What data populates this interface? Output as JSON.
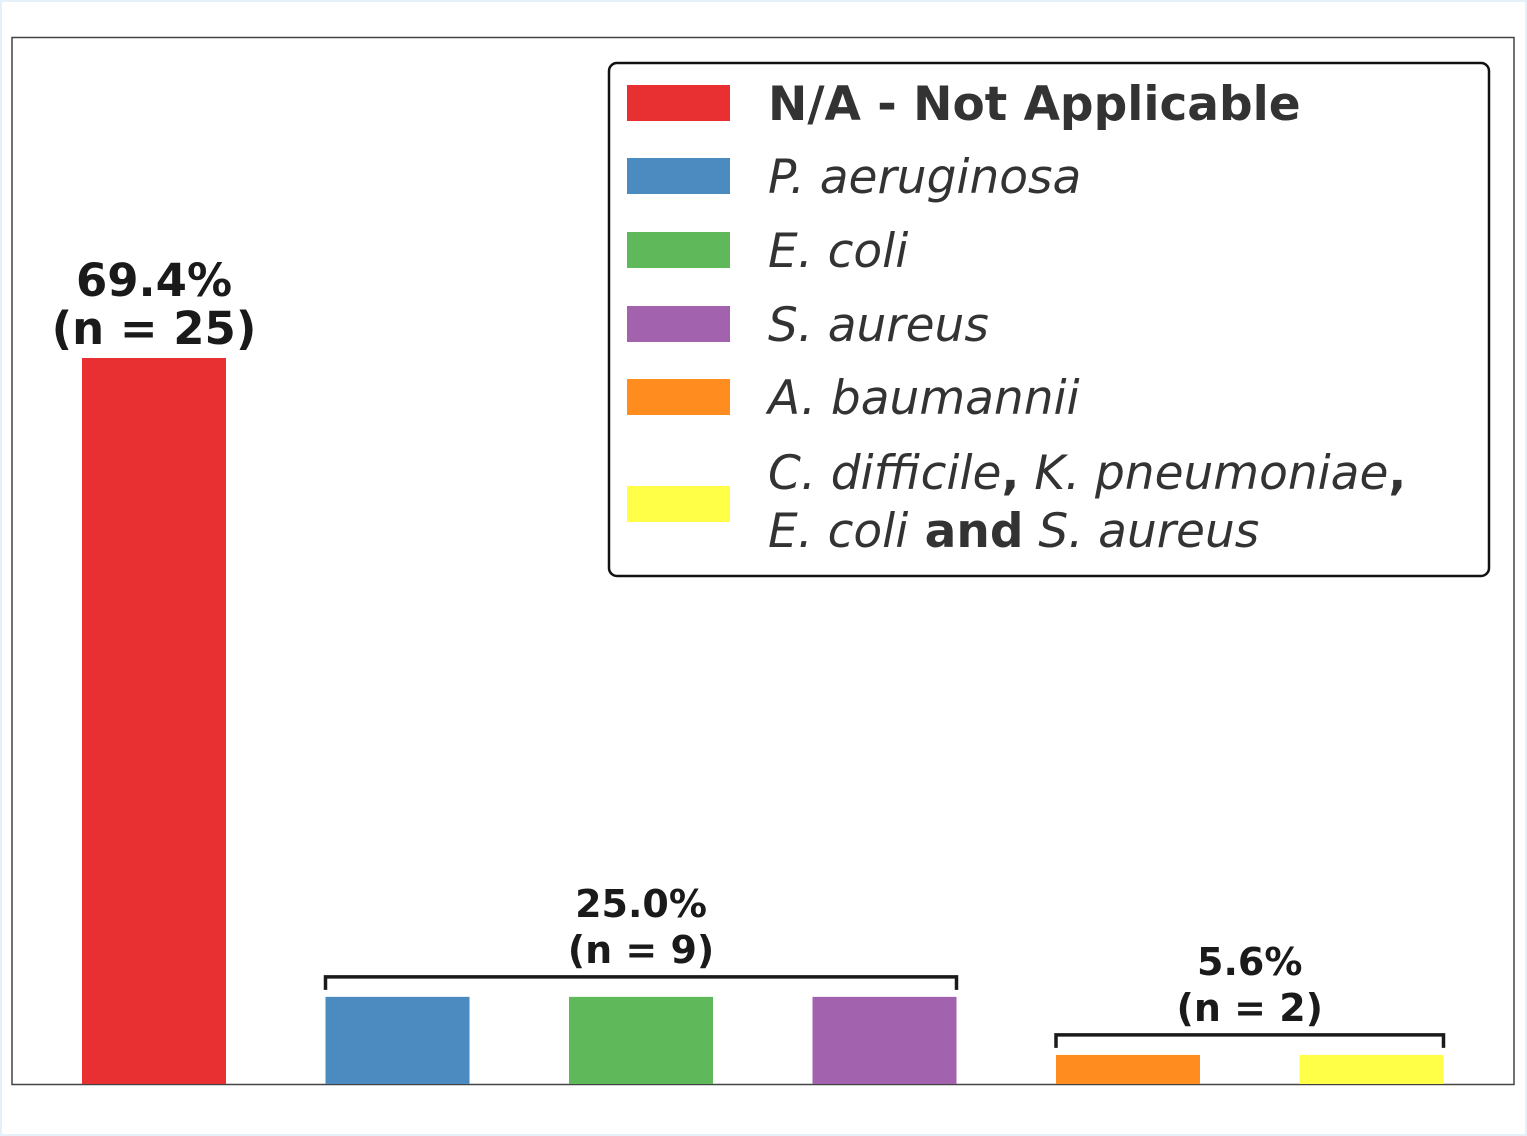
{
  "chart_data": {
    "type": "bar",
    "title": "",
    "xlabel": "",
    "ylabel": "",
    "ylim": [
      0,
      100
    ],
    "grid": false,
    "legend_placement": "top-right",
    "categories": [
      "N/A - Not Applicable",
      "P. aeruginosa",
      "E. coli",
      "S. aureus",
      "A. baumannii",
      "C. difficile, K. pneumoniae, E. coli and S. aureus"
    ],
    "values": [
      69.4,
      8.33,
      8.33,
      8.33,
      2.78,
      2.78
    ],
    "colors": [
      "#e83033",
      "#4b8bbf",
      "#5fb95b",
      "#a262ad",
      "#ff8c1f",
      "#ffff47"
    ],
    "legend": [
      {
        "parts": [
          {
            "text": "N/A - Not Applicable",
            "style": "bold"
          }
        ]
      },
      {
        "parts": [
          {
            "text": "P.",
            "style": "italic"
          },
          {
            "text": "aeruginosa",
            "style": "italic"
          }
        ]
      },
      {
        "parts": [
          {
            "text": "E.",
            "style": "italic"
          },
          {
            "text": "coli",
            "style": "italic"
          }
        ]
      },
      {
        "parts": [
          {
            "text": "S.",
            "style": "italic"
          },
          {
            "text": "aureus",
            "style": "italic"
          }
        ]
      },
      {
        "parts": [
          {
            "text": "A.",
            "style": "italic"
          },
          {
            "text": "baumannii",
            "style": "italic"
          }
        ]
      },
      {
        "parts": [
          {
            "text": "C.",
            "style": "italic"
          },
          {
            "text": "difficile",
            "style": "italic"
          },
          {
            "text": ",",
            "style": "bold"
          },
          {
            "text": "K.",
            "style": "italic"
          },
          {
            "text": "pneumoniae",
            "style": "italic"
          },
          {
            "text": ",",
            "style": "bold"
          }
        ],
        "parts2": [
          {
            "text": "E.",
            "style": "italic"
          },
          {
            "text": "coli",
            "style": "italic"
          },
          {
            "text": "and",
            "style": "bold"
          },
          {
            "text": "S.",
            "style": "italic"
          },
          {
            "text": "aureus",
            "style": "italic"
          }
        ]
      }
    ],
    "annotations": [
      {
        "bars": [
          0
        ],
        "pct": "69.4%",
        "n": "(n = 25)",
        "value": 69.4,
        "bracket": false
      },
      {
        "bars": [
          1,
          2,
          3
        ],
        "pct": "25.0%",
        "n": "(n = 9)",
        "value": 8.33,
        "bracket": true
      },
      {
        "bars": [
          4,
          5
        ],
        "pct": "5.6%",
        "n": "(n = 2)",
        "value": 2.78,
        "bracket": true
      }
    ]
  }
}
